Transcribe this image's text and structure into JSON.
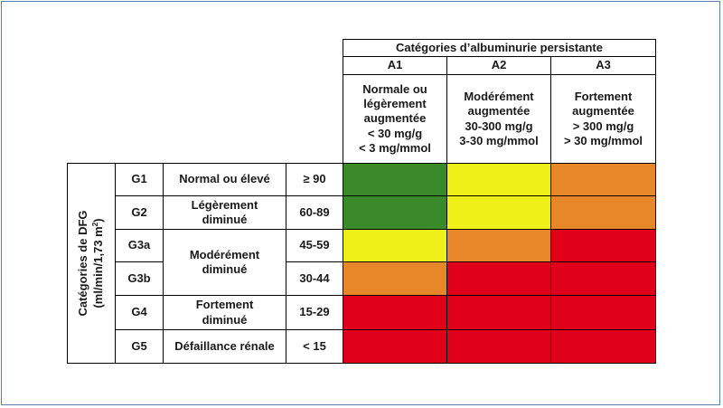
{
  "colors": {
    "green": "#3a8a2a",
    "yellow": "#eef018",
    "orange": "#e8862a",
    "red": "#e0001b",
    "frame": "#5a7fae"
  },
  "albuminuria": {
    "title": "Catégories d’albuminurie persistante",
    "columns": [
      {
        "code": "A1",
        "desc": [
          "Normale ou",
          "légèrement",
          "augmentée",
          "< 30 mg/g",
          "< 3 mg/mmol"
        ]
      },
      {
        "code": "A2",
        "desc": [
          "Modérément",
          "augmentée",
          "30-300 mg/g",
          "3-30 mg/mmol"
        ]
      },
      {
        "code": "A3",
        "desc": [
          "Fortement",
          "augmentée",
          "> 300 mg/g",
          "> 30 mg/mmol"
        ]
      }
    ]
  },
  "gfr": {
    "title_line1": "Catégories de DFG",
    "title_line2_prefix": "(ml/min/1,73 m",
    "title_line2_sup": "2",
    "title_line2_suffix": ")",
    "rows": [
      {
        "code": "G1",
        "range": "≥ 90"
      },
      {
        "code": "G2",
        "range": "60-89"
      },
      {
        "code": "G3a",
        "range": "45-59"
      },
      {
        "code": "G3b",
        "range": "30-44"
      },
      {
        "code": "G4",
        "range": "15-29"
      },
      {
        "code": "G5",
        "range": "< 15"
      }
    ],
    "descriptions": {
      "g1": "Normal ou élevé",
      "g2": [
        "Légèrement",
        "diminué"
      ],
      "g3": [
        "Modérément",
        "diminué"
      ],
      "g4": [
        "Fortement",
        "diminué"
      ],
      "g5": "Défaillance rénale"
    }
  },
  "risk_matrix": [
    [
      "green",
      "yellow",
      "orange"
    ],
    [
      "green",
      "yellow",
      "orange"
    ],
    [
      "yellow",
      "orange",
      "red"
    ],
    [
      "orange",
      "red",
      "red"
    ],
    [
      "red",
      "red",
      "red"
    ],
    [
      "red",
      "red",
      "red"
    ]
  ]
}
